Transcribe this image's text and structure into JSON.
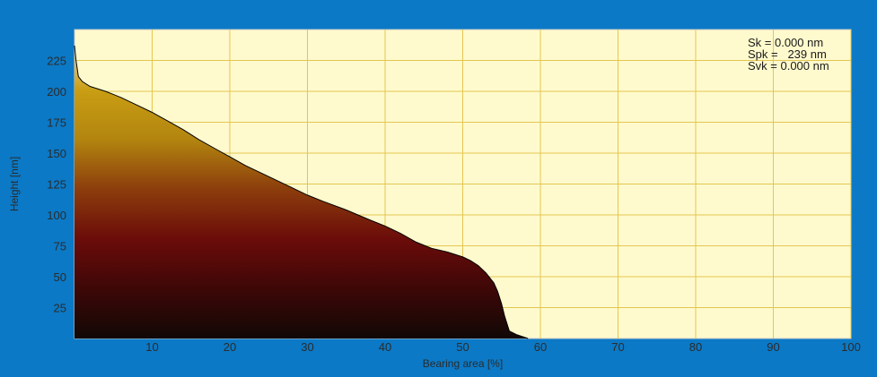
{
  "colors": {
    "frame": "#0b79c6",
    "plot_background": "#fffacd",
    "grid": "#e3c651",
    "fill_gradient": [
      "#110806",
      "#3e0707",
      "#6b0c0a",
      "#8c3d0c",
      "#b2850f",
      "#c99e13",
      "#efdbb8"
    ],
    "outline": "#000000"
  },
  "chart_data": {
    "type": "area",
    "title": "",
    "xlabel": "Bearing area [%]",
    "ylabel": "Height [nm]",
    "xlim": [
      0,
      100
    ],
    "ylim": [
      0,
      250
    ],
    "x_ticks": [
      10,
      20,
      30,
      40,
      50,
      60,
      70,
      80,
      90,
      100
    ],
    "y_ticks": [
      25,
      50,
      75,
      100,
      125,
      150,
      175,
      200,
      225
    ],
    "grid": true,
    "annotations": [
      "Sk = 0.000 nm",
      "Spk =   239 nm",
      "Svk = 0.000 nm"
    ],
    "annotation_position": "top-right",
    "curve": {
      "x": [
        0,
        0.2,
        0.5,
        1,
        2,
        4,
        6,
        8,
        10,
        12,
        14,
        16,
        18,
        20,
        22,
        25,
        28,
        30,
        32,
        35,
        38,
        40,
        42,
        44,
        46,
        48,
        50,
        51,
        52,
        53,
        54,
        54.5,
        55,
        55.4,
        56,
        57,
        58.4
      ],
      "y": [
        237,
        225,
        212,
        208,
        204,
        200,
        195,
        189,
        183,
        176,
        169,
        161,
        154,
        147,
        140,
        131,
        122,
        116,
        111,
        104,
        96,
        91,
        85,
        78,
        73,
        70,
        66,
        63,
        59,
        53,
        45,
        38,
        28,
        18,
        6,
        3,
        0
      ]
    }
  }
}
